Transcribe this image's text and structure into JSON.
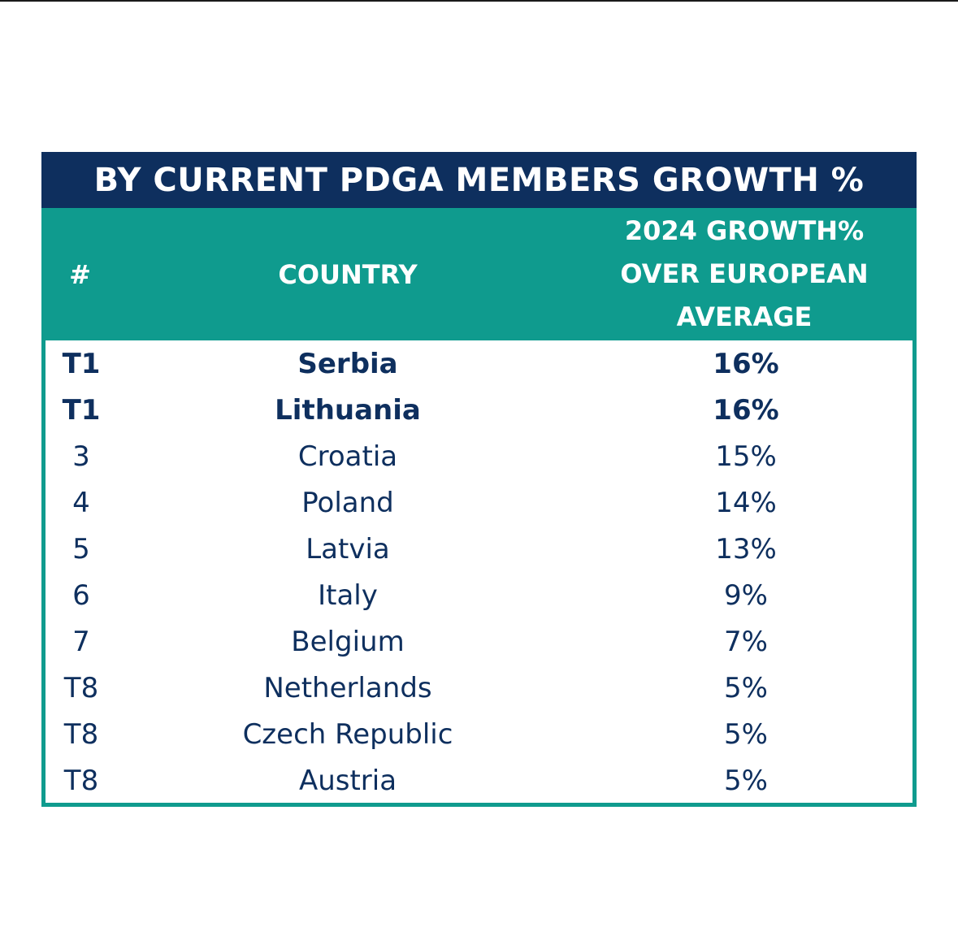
{
  "title": "BY CURRENT PDGA MEMBERS GROWTH %",
  "header": {
    "rank": "#",
    "country": "COUNTRY",
    "growth_lines": [
      "2024 GROWTH%",
      "OVER EUROPEAN",
      "AVERAGE"
    ]
  },
  "rows": [
    {
      "rank": "T1",
      "country": "Serbia",
      "growth": "16%",
      "bold": true
    },
    {
      "rank": "T1",
      "country": "Lithuania",
      "growth": "16%",
      "bold": true
    },
    {
      "rank": "3",
      "country": "Croatia",
      "growth": "15%",
      "bold": false
    },
    {
      "rank": "4",
      "country": "Poland",
      "growth": "14%",
      "bold": false
    },
    {
      "rank": "5",
      "country": "Latvia",
      "growth": "13%",
      "bold": false
    },
    {
      "rank": "6",
      "country": "Italy",
      "growth": "9%",
      "bold": false
    },
    {
      "rank": "7",
      "country": "Belgium",
      "growth": "7%",
      "bold": false
    },
    {
      "rank": "T8",
      "country": "Netherlands",
      "growth": "5%",
      "bold": false
    },
    {
      "rank": "T8",
      "country": "Czech Republic",
      "growth": "5%",
      "bold": false
    },
    {
      "rank": "T8",
      "country": "Austria",
      "growth": "5%",
      "bold": false
    }
  ],
  "colors": {
    "title_bg": "#0e2f5e",
    "header_bg": "#0f9b8e",
    "text": "#0e2f5e"
  }
}
